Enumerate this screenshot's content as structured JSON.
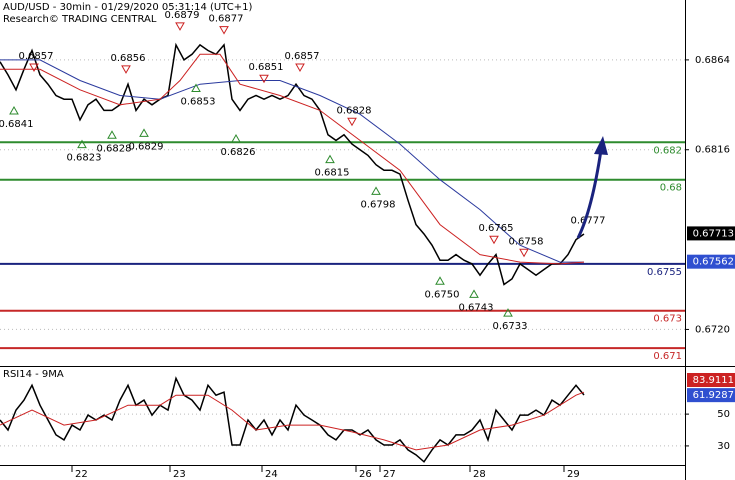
{
  "chart_data": [
    {
      "type": "line",
      "title": "AUD/USD - 30min - 01/29/2020 05:31:14 (UTC+1)",
      "subtitle": "Research© TRADING CENTRAL",
      "xlim": [
        0,
        342.5
      ],
      "ylim": [
        0.6701,
        0.6896
      ],
      "yticks": [
        0.6864,
        0.6816,
        {
          "value": 0.672,
          "label": "0.6720"
        }
      ],
      "x": [
        0,
        4,
        8,
        12,
        16,
        20,
        24,
        28,
        32,
        36,
        40,
        44,
        48,
        52,
        56,
        60,
        64,
        68,
        72,
        76,
        80,
        84,
        88,
        92,
        96,
        100,
        104,
        108,
        112,
        116,
        120,
        124,
        128,
        132,
        136,
        140,
        144,
        148,
        152,
        156,
        160,
        164,
        168,
        172,
        176,
        180,
        184,
        188,
        192,
        196,
        200,
        204,
        208,
        212,
        216,
        220,
        224,
        228,
        232,
        236,
        240,
        244,
        248,
        252,
        256,
        260,
        264,
        268,
        272,
        276,
        280,
        284,
        288,
        292
      ],
      "series": [
        {
          "color": "#000000",
          "values": [
            0.6863,
            0.6856,
            0.6848,
            0.6859,
            0.6869,
            0.6856,
            0.6851,
            0.6845,
            0.6843,
            0.6843,
            0.6832,
            0.684,
            0.6843,
            0.6837,
            0.6837,
            0.684,
            0.6851,
            0.6837,
            0.6843,
            0.684,
            0.6843,
            0.6845,
            0.6872,
            0.6864,
            0.6867,
            0.6872,
            0.6869,
            0.6867,
            0.6872,
            0.6843,
            0.6837,
            0.6843,
            0.6845,
            0.6843,
            0.6845,
            0.6843,
            0.6845,
            0.6851,
            0.6845,
            0.6843,
            0.6837,
            0.6824,
            0.6821,
            0.6824,
            0.6819,
            0.6816,
            0.6813,
            0.6808,
            0.6805,
            0.6805,
            0.6803,
            0.6789,
            0.6776,
            0.6771,
            0.6765,
            0.6757,
            0.6757,
            0.676,
            0.6757,
            0.6755,
            0.6749,
            0.6755,
            0.676,
            0.6744,
            0.6747,
            0.6755,
            0.6752,
            0.6749,
            0.6752,
            0.6755,
            0.6755,
            0.676,
            0.6768,
            0.6771
          ]
        },
        {
          "color": "#2b3a9e",
          "x": [
            0,
            20,
            40,
            60,
            80,
            100,
            120,
            140,
            160,
            180,
            200,
            220,
            240,
            260,
            280,
            292
          ],
          "values": [
            0.6864,
            0.6864,
            0.6853,
            0.6845,
            0.6843,
            0.6851,
            0.6853,
            0.6853,
            0.6845,
            0.6835,
            0.6819,
            0.68,
            0.6784,
            0.6765,
            0.6756,
            0.6756
          ]
        },
        {
          "color": "#cc2222",
          "x": [
            0,
            20,
            40,
            60,
            80,
            90,
            100,
            110,
            120,
            140,
            160,
            180,
            200,
            220,
            240,
            260,
            280,
            292
          ],
          "values": [
            0.6859,
            0.6859,
            0.6848,
            0.684,
            0.6843,
            0.6853,
            0.6867,
            0.6867,
            0.6851,
            0.6845,
            0.6837,
            0.6821,
            0.6805,
            0.6776,
            0.676,
            0.6756,
            0.6755,
            0.6756
          ]
        }
      ],
      "levels": [
        {
          "value": 0.682,
          "color": "#2e8b2e"
        },
        {
          "value": 0.68,
          "color": "#2e8b2e"
        },
        {
          "value": 0.6755,
          "color": "#1a237e"
        },
        {
          "value": 0.673,
          "color": "#c62828"
        },
        {
          "value": 0.671,
          "color": "#c62828"
        }
      ],
      "annotations": [
        {
          "x": 7,
          "value": 0.6841,
          "kind": "low"
        },
        {
          "x": 17,
          "value": 0.6857,
          "kind": "high"
        },
        {
          "x": 41,
          "value": 0.6823,
          "kind": "low"
        },
        {
          "x": 56,
          "value": 0.6828,
          "kind": "low"
        },
        {
          "x": 63,
          "value": 0.6856,
          "kind": "high"
        },
        {
          "x": 72,
          "value": 0.6829,
          "kind": "low"
        },
        {
          "x": 90,
          "value": 0.6879,
          "kind": "high"
        },
        {
          "x": 98,
          "value": 0.6853,
          "kind": "low"
        },
        {
          "x": 112,
          "value": 0.6877,
          "kind": "high"
        },
        {
          "x": 118,
          "value": 0.6826,
          "kind": "low"
        },
        {
          "x": 132,
          "value": 0.6851,
          "kind": "high"
        },
        {
          "x": 150,
          "value": 0.6857,
          "kind": "high"
        },
        {
          "x": 165,
          "value": 0.6815,
          "kind": "low"
        },
        {
          "x": 176,
          "value": 0.6828,
          "kind": "high"
        },
        {
          "x": 188,
          "value": 0.6798,
          "kind": "low"
        },
        {
          "x": 220,
          "value": 0.675,
          "label": "0.6750",
          "kind": "low"
        },
        {
          "x": 237,
          "value": 0.6743,
          "kind": "low"
        },
        {
          "x": 247,
          "value": 0.6765,
          "kind": "high"
        },
        {
          "x": 254,
          "value": 0.6733,
          "kind": "low"
        },
        {
          "x": 262,
          "value": 0.6758,
          "kind": "high"
        },
        {
          "x": 294,
          "value": 0.6777,
          "kind": "label"
        }
      ],
      "last_labels": [
        {
          "value": 0.67713,
          "color": "#000000"
        },
        {
          "value": 0.67562,
          "color": "#2f4fd0"
        }
      ]
    },
    {
      "type": "line",
      "title": "RSI14 - 9MA",
      "xlim": [
        0,
        342.5
      ],
      "ylim": [
        18,
        79
      ],
      "yticks": [
        50,
        30
      ],
      "xticks": [
        {
          "value": 36,
          "label": "22"
        },
        {
          "value": 85,
          "label": "23"
        },
        {
          "value": 131,
          "label": "24"
        },
        {
          "value": 178,
          "label": "26"
        },
        {
          "value": 190,
          "label": "27"
        },
        {
          "value": 235,
          "label": "28"
        },
        {
          "value": 282,
          "label": "29"
        }
      ],
      "x": [
        0,
        4,
        8,
        12,
        16,
        20,
        24,
        28,
        32,
        36,
        40,
        44,
        48,
        52,
        56,
        60,
        64,
        68,
        72,
        76,
        80,
        84,
        88,
        92,
        96,
        100,
        104,
        108,
        112,
        116,
        120,
        124,
        128,
        132,
        136,
        140,
        144,
        148,
        152,
        156,
        160,
        164,
        168,
        172,
        176,
        180,
        184,
        188,
        192,
        196,
        200,
        204,
        208,
        212,
        216,
        220,
        224,
        228,
        232,
        236,
        240,
        244,
        248,
        252,
        256,
        260,
        264,
        268,
        272,
        276,
        280,
        284,
        288,
        292
      ],
      "series": [
        {
          "color": "#000000",
          "values": [
            46.3,
            40,
            52.5,
            58.8,
            68.1,
            55.6,
            46.3,
            36.9,
            33.8,
            43.1,
            40,
            49.4,
            46.3,
            49.4,
            46.3,
            58.8,
            68.1,
            55.6,
            58.8,
            49.4,
            55.6,
            52.5,
            72.5,
            61.9,
            58.8,
            52.5,
            68.1,
            61.9,
            63.8,
            30.6,
            30.6,
            46.3,
            40,
            46.3,
            36.9,
            46.3,
            40,
            55.6,
            49.4,
            46.3,
            43.1,
            36.9,
            33.8,
            40,
            40,
            36.9,
            40,
            33.8,
            30.6,
            30.6,
            33.8,
            27.5,
            24.4,
            20,
            27.5,
            33.8,
            30.6,
            36.9,
            36.9,
            40,
            46.3,
            33.8,
            52.5,
            46.3,
            40,
            49.4,
            49.4,
            52.5,
            49.4,
            58.8,
            55.6,
            61.9,
            68.1,
            62
          ]
        },
        {
          "color": "#cc2222",
          "x": [
            0,
            16,
            32,
            48,
            64,
            80,
            88,
            104,
            116,
            128,
            144,
            160,
            176,
            192,
            208,
            224,
            240,
            256,
            272,
            288,
            292
          ],
          "values": [
            43.1,
            52.5,
            43.1,
            46.3,
            55.6,
            55.6,
            61.9,
            61.9,
            52.5,
            40,
            43.1,
            43.1,
            38.8,
            33.8,
            27.5,
            30.6,
            40,
            43.1,
            49.4,
            61.9,
            63.8
          ]
        }
      ],
      "last_labels": [
        {
          "value": 83.9111,
          "color": "#cc2222"
        },
        {
          "value": 61.9287,
          "color": "#2f4fd0"
        }
      ]
    }
  ]
}
